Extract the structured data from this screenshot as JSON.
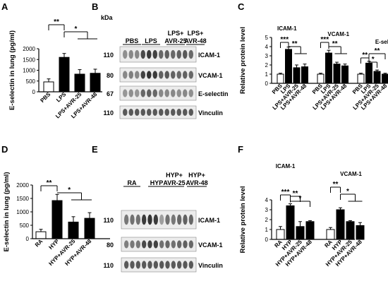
{
  "panels": {
    "A": "A",
    "B": "B",
    "C": "C",
    "D": "D",
    "E": "E",
    "F": "F"
  },
  "chart_data": [
    {
      "panel": "A",
      "type": "bar",
      "ylabel": "E-selectin in lung (pg/ml)",
      "categories": [
        "PBS",
        "LPS",
        "LPS+AVR-25",
        "LPS+AVR-48"
      ],
      "values": [
        460,
        1600,
        820,
        860
      ],
      "errors": [
        140,
        180,
        210,
        190
      ],
      "fills": [
        "#ffffff",
        "#000000",
        "#000000",
        "#000000"
      ],
      "ylim": [
        0,
        2000
      ],
      "yticks": [
        0,
        500,
        1000,
        1500,
        2000
      ],
      "significance": [
        {
          "label": "**",
          "from": 0,
          "to": 1
        },
        {
          "label": "*",
          "from": 1,
          "to": [
            2,
            3
          ]
        }
      ]
    },
    {
      "panel": "C",
      "type": "bar",
      "ylabel": "Relative protein level",
      "ylim": [
        0,
        5
      ],
      "yticks": [
        0,
        1,
        2,
        3,
        4,
        5
      ],
      "groups": [
        {
          "name": "ICAM-1",
          "categories": [
            "PBS",
            "LPS",
            "LPS+AVR-25",
            "LPS+AVR-48"
          ],
          "values": [
            1.0,
            3.7,
            1.7,
            1.8
          ],
          "errors": [
            0.1,
            0.25,
            0.3,
            0.3
          ],
          "significance": [
            {
              "label": "***",
              "from": 0,
              "to": 1
            },
            {
              "label": "**",
              "from": 1,
              "to": [
                2,
                3
              ]
            }
          ]
        },
        {
          "name": "VCAM-1",
          "categories": [
            "PBS",
            "LPS",
            "LPS+AVR-25",
            "LPS+AVR-48"
          ],
          "values": [
            1.0,
            3.3,
            2.1,
            1.9
          ],
          "errors": [
            0.1,
            0.3,
            0.2,
            0.2
          ],
          "significance": [
            {
              "label": "***",
              "from": 0,
              "to": 1
            },
            {
              "label": "**",
              "from": 1,
              "to": [
                2,
                3
              ]
            }
          ]
        },
        {
          "name": "E-selectin",
          "categories": [
            "PBS",
            "LPS",
            "LPS+AVR-25",
            "LPS+AVR-48"
          ],
          "values": [
            1.0,
            2.2,
            1.3,
            1.0
          ],
          "errors": [
            0.1,
            0.2,
            0.15,
            0.1
          ],
          "significance": [
            {
              "label": "**",
              "from": 0,
              "to": 1
            },
            {
              "label": "*",
              "from": 1,
              "to": 2
            },
            {
              "label": "**",
              "from": 1,
              "to": 3
            }
          ]
        }
      ],
      "fills": [
        "#ffffff",
        "#000000",
        "#000000",
        "#000000"
      ]
    },
    {
      "panel": "D",
      "type": "bar",
      "ylabel": "E-selectin in lung (pg/ml)",
      "categories": [
        "RA",
        "HYP",
        "HYP+AVR-25",
        "HYP+AVR-48"
      ],
      "values": [
        260,
        1420,
        620,
        760
      ],
      "errors": [
        90,
        230,
        200,
        210
      ],
      "fills": [
        "#ffffff",
        "#000000",
        "#000000",
        "#000000"
      ],
      "ylim": [
        0,
        2000
      ],
      "yticks": [
        0,
        500,
        1000,
        1500,
        2000
      ],
      "significance": [
        {
          "label": "**",
          "from": 0,
          "to": 1
        },
        {
          "label": "*",
          "from": 1,
          "to": [
            2,
            3
          ]
        }
      ]
    },
    {
      "panel": "F",
      "type": "bar",
      "ylabel": "Relative protein level",
      "ylim": [
        0,
        4
      ],
      "yticks": [
        0,
        1,
        2,
        3,
        4
      ],
      "groups": [
        {
          "name": "ICAM-1",
          "categories": [
            "RA",
            "HYP",
            "HYP+AVR-25",
            "HYP+AVR-48"
          ],
          "values": [
            1.0,
            3.4,
            1.3,
            1.8
          ],
          "errors": [
            0.3,
            0.2,
            0.5,
            0.1
          ],
          "significance": [
            {
              "label": "***",
              "from": 0,
              "to": 1
            },
            {
              "label": "**",
              "from": 1,
              "to": 2
            },
            {
              "label": "*",
              "from": 1,
              "to": 3
            }
          ]
        },
        {
          "name": "VCAM-1",
          "categories": [
            "RA",
            "HYP",
            "HYP+AVR-25",
            "HYP+AVR-48"
          ],
          "values": [
            1.0,
            3.0,
            1.8,
            1.4
          ],
          "errors": [
            0.2,
            0.2,
            0.1,
            0.3
          ],
          "significance": [
            {
              "label": "**",
              "from": 0,
              "to": 1
            },
            {
              "label": "*",
              "from": 1,
              "to": [
                2,
                3
              ]
            }
          ]
        }
      ],
      "fills": [
        "#ffffff",
        "#000000",
        "#000000",
        "#000000"
      ]
    },
    {
      "panel": "B",
      "type": "blot",
      "kda_unit": "kDa",
      "lanes": [
        "PBS",
        "LPS",
        "LPS+ AVR-25",
        "LPS+ AVR-48"
      ],
      "rows": [
        {
          "kda": "110",
          "label": "ICAM-1"
        },
        {
          "kda": "80",
          "label": "VCAM-1"
        },
        {
          "kda": "67",
          "label": "E-selectin"
        },
        {
          "kda": "110",
          "label": "Vinculin"
        }
      ]
    },
    {
      "panel": "E",
      "type": "blot",
      "lanes": [
        "RA",
        "HYP",
        "HYP+ AVR-25",
        "HYP+ AVR-48"
      ],
      "rows": [
        {
          "kda": "110",
          "label": "ICAM-1"
        },
        {
          "kda": "80",
          "label": "VCAM-1"
        },
        {
          "kda": "110",
          "label": "Vinculin"
        }
      ]
    }
  ]
}
